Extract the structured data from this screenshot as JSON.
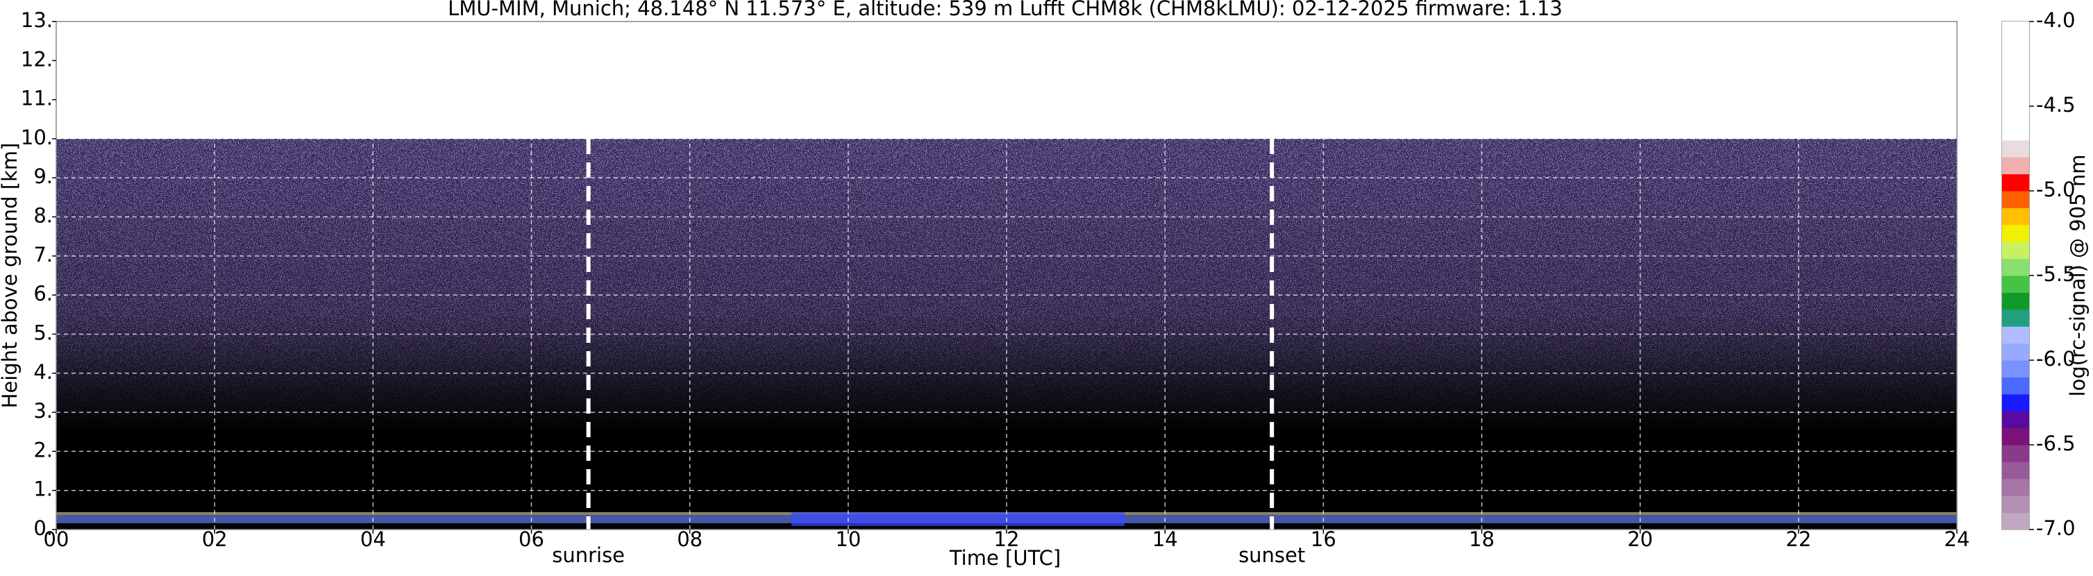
{
  "chart_data": {
    "type": "heatmap",
    "title": "LMU-MIM, Munich; 48.148° N 11.573° E, altitude: 539 m    Lufft CHM8k (CHM8kLMU): 02-12-2025    firmware: 1.13",
    "x_label": "Time [UTC]",
    "y_label": "Height above ground [km]",
    "xlim": [
      0,
      24
    ],
    "xticks": [
      {
        "value": 0,
        "label": "00"
      },
      {
        "value": 2,
        "label": "02"
      },
      {
        "value": 4,
        "label": "04"
      },
      {
        "value": 6,
        "label": "06"
      },
      {
        "value": 8,
        "label": "08"
      },
      10,
      12,
      14,
      16,
      18,
      20,
      22,
      24
    ],
    "ylim": [
      0,
      13
    ],
    "yticks": [
      {
        "value": 0,
        "label": "0."
      },
      {
        "value": 1,
        "label": "1."
      },
      {
        "value": 2,
        "label": "2."
      },
      {
        "value": 3,
        "label": "3."
      },
      {
        "value": 4,
        "label": "4."
      },
      {
        "value": 5,
        "label": "5."
      },
      {
        "value": 6,
        "label": "6."
      },
      {
        "value": 7,
        "label": "7."
      },
      {
        "value": 8,
        "label": "8."
      },
      {
        "value": 9,
        "label": "9."
      },
      {
        "value": 10,
        "label": "10."
      },
      {
        "value": 11,
        "label": "11."
      },
      {
        "value": 12,
        "label": "12."
      },
      {
        "value": 13,
        "label": "13."
      }
    ],
    "grid": true,
    "markers": [
      {
        "label": "sunrise",
        "x": 6.72
      },
      {
        "label": "sunset",
        "x": 15.35
      }
    ],
    "colorbar": {
      "label": "log(rc-signal) @ 905 nm",
      "lim": [
        -7,
        -4
      ],
      "ticks": [
        {
          "value": -4,
          "label": "-4.0"
        },
        -4.5,
        {
          "value": -5,
          "label": "-5.0"
        },
        -5.5,
        {
          "value": -6,
          "label": "-6.0"
        },
        -6.5,
        {
          "value": -7,
          "label": "-7.0"
        }
      ],
      "colors": [
        "#c0a8c0",
        "#b48fb4",
        "#a676a6",
        "#985a98",
        "#8a3a8a",
        "#7a127a",
        "#5a0aa0",
        "#1a1aff",
        "#4a6aff",
        "#7a92ff",
        "#98aaff",
        "#b0bcff",
        "#20a080",
        "#119a2a",
        "#44c444",
        "#88e070",
        "#c8f060",
        "#f0f000",
        "#ffc000",
        "#ff6000",
        "#ff0000",
        "#f0b0b0",
        "#e8dcdc",
        "#ffffff",
        "#ffffff",
        "#ffffff",
        "#ffffff",
        "#ffffff",
        "#ffffff",
        "#ffffff"
      ]
    }
  }
}
